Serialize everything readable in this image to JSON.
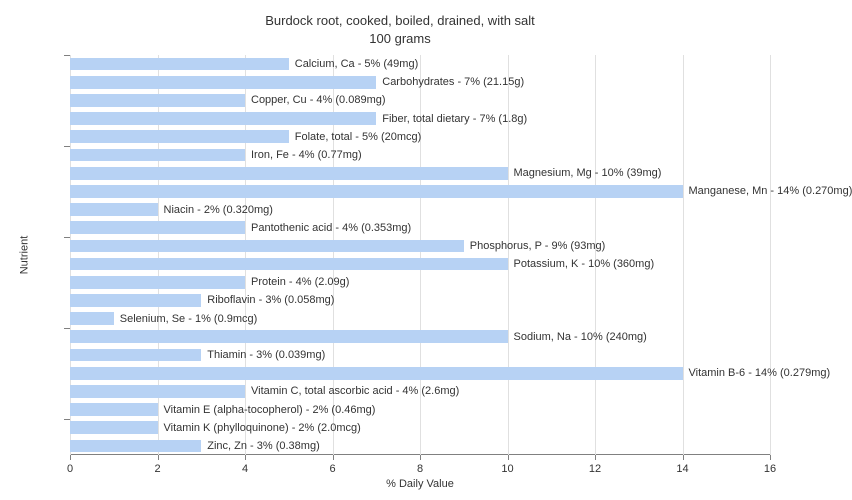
{
  "title_line1": "Burdock root, cooked, boiled, drained, with salt",
  "title_line2": "100 grams",
  "x_axis_label": "% Daily Value",
  "y_axis_label": "Nutrient",
  "chart": {
    "type": "bar",
    "orientation": "horizontal",
    "background_color": "#ffffff",
    "grid_color": "#e0e0e0",
    "axis_color": "#808080",
    "bar_color": "#b7d2f4",
    "label_color": "#333333",
    "label_fontsize": 11,
    "title_fontsize": 13,
    "xlim": [
      0,
      16
    ],
    "xtick_step": 2,
    "bar_gap_ratio": 0.3,
    "nutrients": [
      {
        "label": "Calcium, Ca - 5% (49mg)",
        "value": 5
      },
      {
        "label": "Carbohydrates - 7% (21.15g)",
        "value": 7
      },
      {
        "label": "Copper, Cu - 4% (0.089mg)",
        "value": 4
      },
      {
        "label": "Fiber, total dietary - 7% (1.8g)",
        "value": 7
      },
      {
        "label": "Folate, total - 5% (20mcg)",
        "value": 5
      },
      {
        "label": "Iron, Fe - 4% (0.77mg)",
        "value": 4
      },
      {
        "label": "Magnesium, Mg - 10% (39mg)",
        "value": 10
      },
      {
        "label": "Manganese, Mn - 14% (0.270mg)",
        "value": 14
      },
      {
        "label": "Niacin - 2% (0.320mg)",
        "value": 2
      },
      {
        "label": "Pantothenic acid - 4% (0.353mg)",
        "value": 4
      },
      {
        "label": "Phosphorus, P - 9% (93mg)",
        "value": 9
      },
      {
        "label": "Potassium, K - 10% (360mg)",
        "value": 10
      },
      {
        "label": "Protein - 4% (2.09g)",
        "value": 4
      },
      {
        "label": "Riboflavin - 3% (0.058mg)",
        "value": 3
      },
      {
        "label": "Selenium, Se - 1% (0.9mcg)",
        "value": 1
      },
      {
        "label": "Sodium, Na - 10% (240mg)",
        "value": 10
      },
      {
        "label": "Thiamin - 3% (0.039mg)",
        "value": 3
      },
      {
        "label": "Vitamin B-6 - 14% (0.279mg)",
        "value": 14
      },
      {
        "label": "Vitamin C, total ascorbic acid - 4% (2.6mg)",
        "value": 4
      },
      {
        "label": "Vitamin E (alpha-tocopherol) - 2% (0.46mg)",
        "value": 2
      },
      {
        "label": "Vitamin K (phylloquinone) - 2% (2.0mcg)",
        "value": 2
      },
      {
        "label": "Zinc, Zn - 3% (0.38mg)",
        "value": 3
      }
    ],
    "y_group_tick_every": 5
  }
}
